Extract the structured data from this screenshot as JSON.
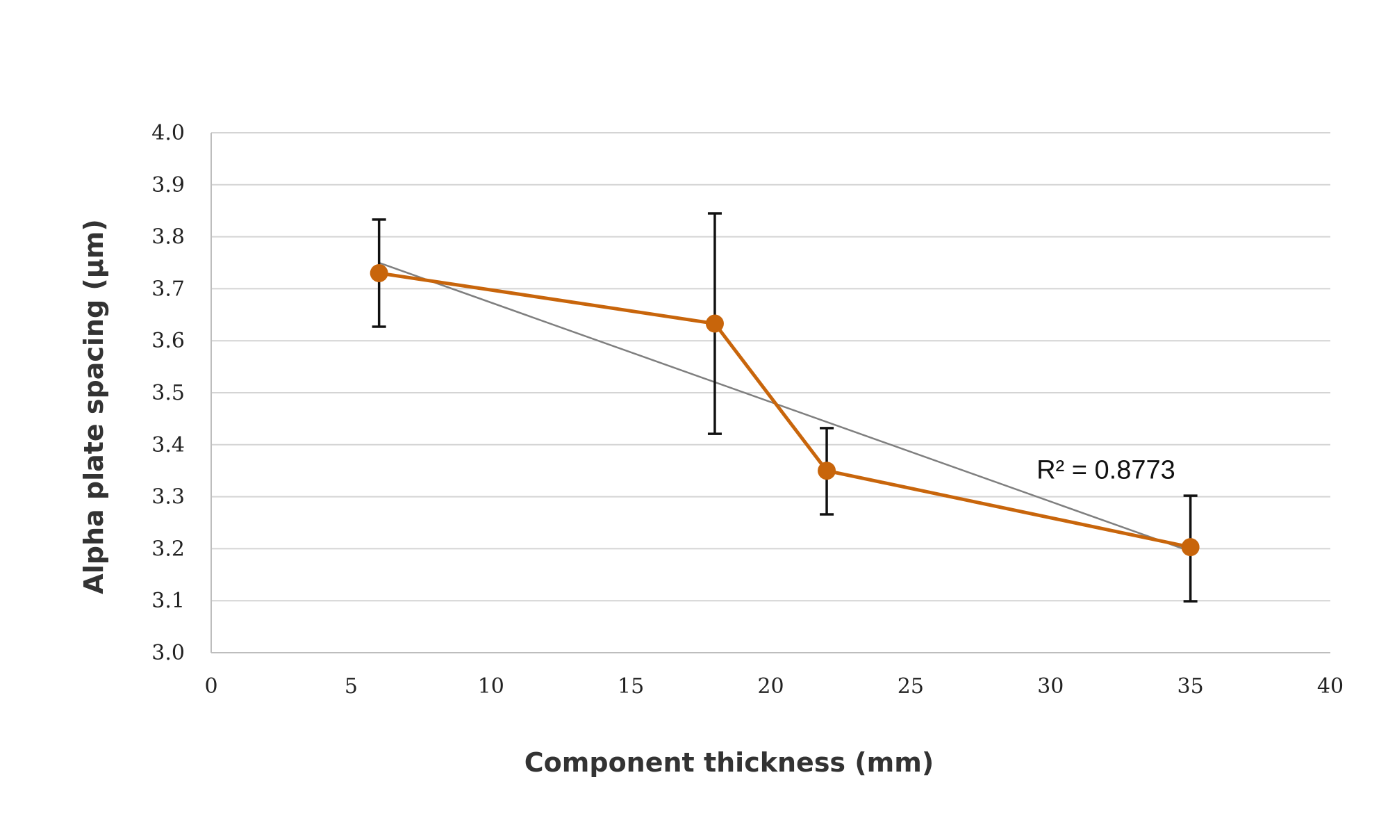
{
  "chart_data": {
    "type": "line",
    "title": "",
    "xlabel": "Component thickness (mm)",
    "ylabel": "Alpha plate spacing (µm)",
    "xlim": [
      0,
      40
    ],
    "ylim": [
      3.0,
      4.0
    ],
    "x_ticks": [
      0,
      5,
      10,
      15,
      20,
      25,
      30,
      35,
      40
    ],
    "y_ticks": [
      3.0,
      3.1,
      3.2,
      3.3,
      3.4,
      3.5,
      3.6,
      3.7,
      3.8,
      3.9,
      4.0
    ],
    "x_tick_labels": [
      "0",
      "5",
      "10",
      "15",
      "20",
      "25",
      "30",
      "35",
      "40"
    ],
    "y_tick_labels": [
      "3.0",
      "3.1",
      "3.2",
      "3.3",
      "3.4",
      "3.5",
      "3.6",
      "3.7",
      "3.8",
      "3.9",
      "4.0"
    ],
    "grid": "horizontal",
    "series": [
      {
        "x": [
          6,
          18,
          22,
          35
        ],
        "y": [
          3.73,
          3.633,
          3.35,
          3.203
        ],
        "error_upper": [
          3.833,
          3.845,
          3.432,
          3.302
        ],
        "error_lower": [
          3.627,
          3.421,
          3.266,
          3.099
        ],
        "color": "#c8650b"
      }
    ],
    "trendline": {
      "type": "linear",
      "x": [
        6,
        35
      ],
      "y": [
        3.75,
        3.195
      ],
      "color": "#7f7f7f"
    },
    "annotation": {
      "text": "R² = 0.8773",
      "x": 29.5,
      "y": 3.335
    }
  }
}
